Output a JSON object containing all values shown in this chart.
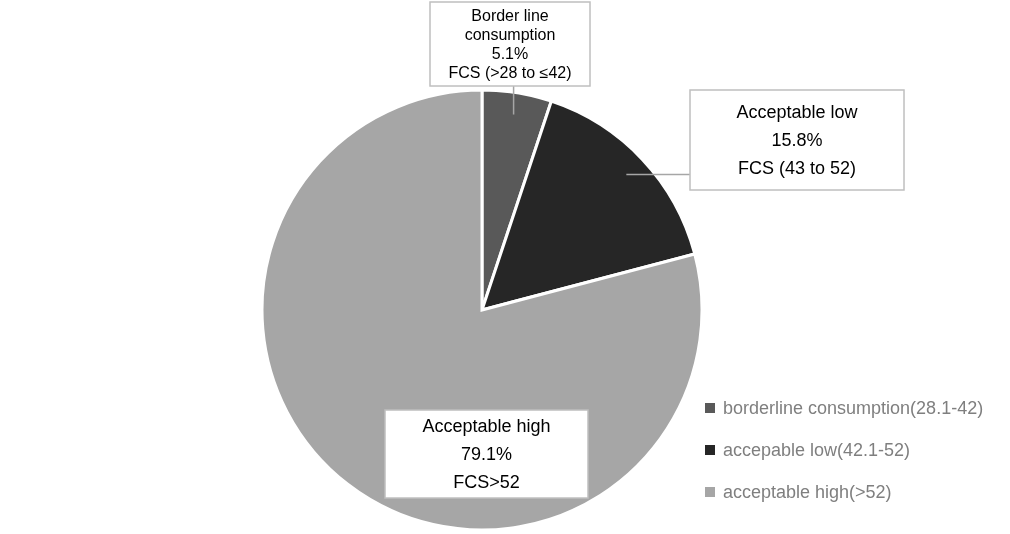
{
  "chart_data": {
    "type": "pie",
    "categories": [
      "borderline consumption(28.1-42)",
      "accepable low(42.1-52)",
      "acceptable high(>52)"
    ],
    "values": [
      5.1,
      15.8,
      79.1
    ],
    "colors": [
      "#595959",
      "#262626",
      "#a6a6a6"
    ],
    "value_labels": [
      "Border line\nconsumption\n5.1%\nFCS (>28 to ≤42)",
      "Acceptable low\n15.8%\nFCS (43 to 52)",
      "Acceptable high\n79.1%\nFCS>52"
    ],
    "legend": "bottom right"
  }
}
